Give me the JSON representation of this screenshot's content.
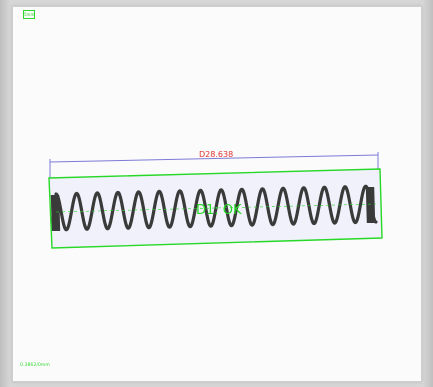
{
  "viewer": {
    "corner_badge": "5mm",
    "scale_readout": "0.3862/0mm"
  },
  "measurement": {
    "dimension_label": "D28.638",
    "result_label": "D1: OK",
    "colors": {
      "dimension_line": "#7b7bd6",
      "dimension_text": "#e0332f",
      "roi_box": "#27d827",
      "spring": "#3a3a3a"
    }
  }
}
